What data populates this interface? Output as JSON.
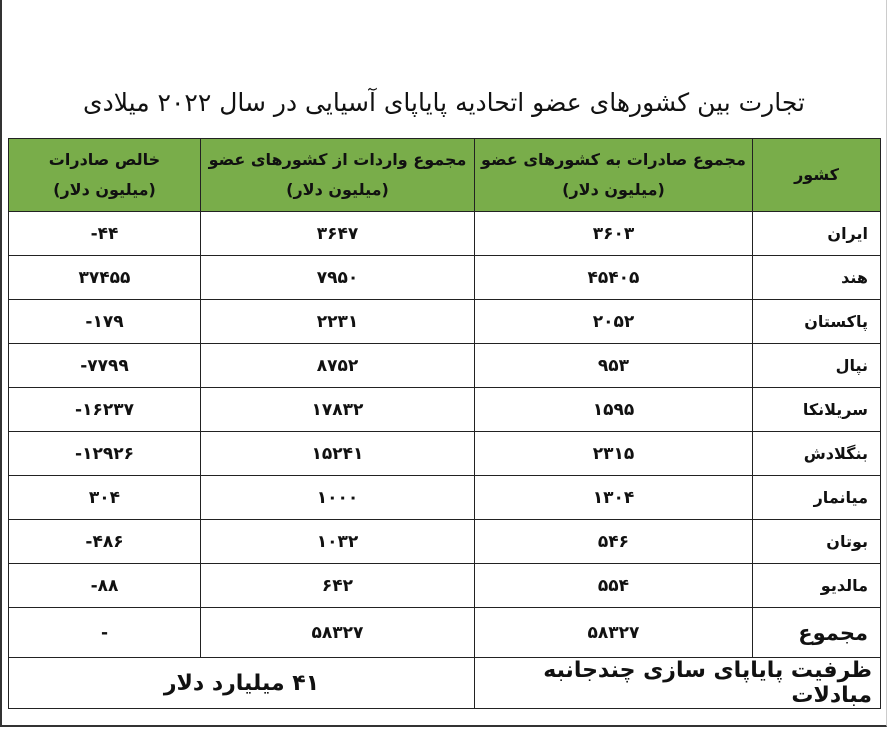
{
  "title": "تجارت بین کشورهای عضو اتحادیه پایاپای آسیایی در سال ۲۰۲۲ میلادی",
  "header_color": "#79ad4a",
  "columns": [
    {
      "line1": "کشور",
      "line2": ""
    },
    {
      "line1": "مجموع صادرات به کشورهای عضو",
      "line2": "(میلیون دلار)"
    },
    {
      "line1": "مجموع واردات از کشورهای عضو",
      "line2": "(میلیون دلار)"
    },
    {
      "line1": "خالص صادرات",
      "line2": "(میلیون دلار)"
    }
  ],
  "rows": [
    {
      "country": "ایران",
      "exports": "۳۶۰۳",
      "imports": "۳۶۴۷",
      "net": "-۴۴"
    },
    {
      "country": "هند",
      "exports": "۴۵۴۰۵",
      "imports": "۷۹۵۰",
      "net": "۳۷۴۵۵"
    },
    {
      "country": "پاکستان",
      "exports": "۲۰۵۲",
      "imports": "۲۲۳۱",
      "net": "-۱۷۹"
    },
    {
      "country": "نپال",
      "exports": "۹۵۳",
      "imports": "۸۷۵۲",
      "net": "-۷۷۹۹"
    },
    {
      "country": "سریلانکا",
      "exports": "۱۵۹۵",
      "imports": "۱۷۸۳۲",
      "net": "-۱۶۲۳۷"
    },
    {
      "country": "بنگلادش",
      "exports": "۲۳۱۵",
      "imports": "۱۵۲۴۱",
      "net": "-۱۲۹۲۶"
    },
    {
      "country": "میانمار",
      "exports": "۱۳۰۴",
      "imports": "۱۰۰۰",
      "net": "۳۰۴"
    },
    {
      "country": "بوتان",
      "exports": "۵۴۶",
      "imports": "۱۰۳۲",
      "net": "-۴۸۶"
    },
    {
      "country": "مالدیو",
      "exports": "۵۵۴",
      "imports": "۶۴۲",
      "net": "-۸۸"
    }
  ],
  "total": {
    "label": "مجموع",
    "exports": "۵۸۳۲۷",
    "imports": "۵۸۳۲۷",
    "net": "-"
  },
  "capacity": {
    "label": "ظرفیت پایاپای سازی چندجانبه مبادلات",
    "value": "۴۱ میلیارد دلار"
  }
}
